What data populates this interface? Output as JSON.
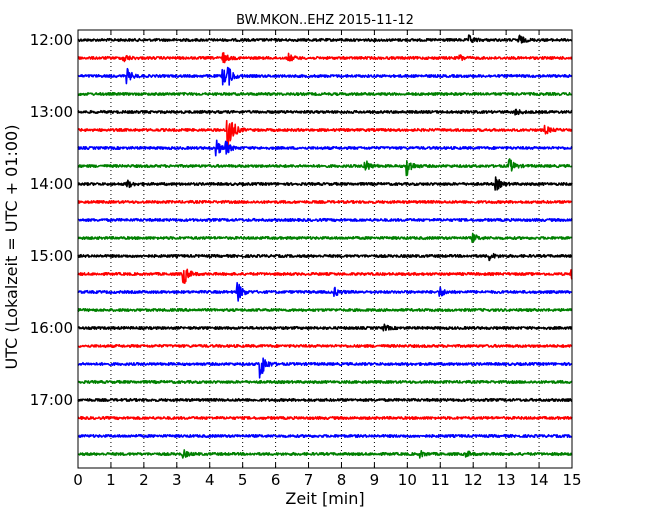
{
  "chart_data": {
    "type": "line",
    "title": "BW.MKON..EHZ 2015-11-12",
    "xlabel": "Zeit  [min]",
    "ylabel": "UTC (Lokalzeit = UTC + 01:00)",
    "xlim": [
      0,
      15
    ],
    "x_ticks": [
      "0",
      "1",
      "2",
      "3",
      "4",
      "5",
      "6",
      "7",
      "8",
      "9",
      "10",
      "11",
      "12",
      "13",
      "14",
      "15"
    ],
    "y_ticks": [
      "12:00",
      "13:00",
      "14:00",
      "15:00",
      "16:00",
      "17:00"
    ],
    "grid": "vertical dotted",
    "color_cycle": [
      "#000000",
      "#ff0000",
      "#0000ff",
      "#008000"
    ],
    "series": [
      {
        "start": "12:00",
        "color": "#000000",
        "events": [
          {
            "t": 11.9,
            "a": 0.2
          },
          {
            "t": 13.4,
            "a": 0.25
          }
        ]
      },
      {
        "start": "12:15",
        "color": "#ff0000",
        "events": [
          {
            "t": 1.4,
            "a": 0.2
          },
          {
            "t": 4.4,
            "a": 0.3
          },
          {
            "t": 6.4,
            "a": 0.2
          },
          {
            "t": 11.6,
            "a": 0.15
          }
        ]
      },
      {
        "start": "12:30",
        "color": "#0000ff",
        "events": [
          {
            "t": 1.5,
            "a": 0.35
          },
          {
            "t": 4.4,
            "a": 0.45
          },
          {
            "t": 4.55,
            "a": 0.5
          }
        ]
      },
      {
        "start": "12:45",
        "color": "#008000",
        "events": []
      },
      {
        "start": "13:00",
        "color": "#000000",
        "events": [
          {
            "t": 13.3,
            "a": 0.15
          }
        ]
      },
      {
        "start": "13:15",
        "color": "#ff0000",
        "events": [
          {
            "t": 4.55,
            "a": 1.6
          },
          {
            "t": 14.2,
            "a": 0.2
          }
        ]
      },
      {
        "start": "13:30",
        "color": "#0000ff",
        "events": [
          {
            "t": 4.2,
            "a": 0.45
          },
          {
            "t": 4.5,
            "a": 0.3
          }
        ]
      },
      {
        "start": "13:45",
        "color": "#008000",
        "events": [
          {
            "t": 8.7,
            "a": 0.4
          },
          {
            "t": 10.0,
            "a": 0.5
          },
          {
            "t": 13.1,
            "a": 0.4
          }
        ]
      },
      {
        "start": "14:00",
        "color": "#000000",
        "events": [
          {
            "t": 1.5,
            "a": 0.2
          },
          {
            "t": 12.7,
            "a": 0.35
          }
        ]
      },
      {
        "start": "14:15",
        "color": "#ff0000",
        "events": []
      },
      {
        "start": "14:30",
        "color": "#0000ff",
        "events": []
      },
      {
        "start": "14:45",
        "color": "#008000",
        "events": [
          {
            "t": 12.0,
            "a": 0.2
          }
        ]
      },
      {
        "start": "15:00",
        "color": "#000000",
        "events": [
          {
            "t": 12.5,
            "a": 0.2
          }
        ]
      },
      {
        "start": "15:15",
        "color": "#ff0000",
        "events": [
          {
            "t": 3.2,
            "a": 0.65
          },
          {
            "t": 15.0,
            "a": 0.3
          }
        ]
      },
      {
        "start": "15:30",
        "color": "#0000ff",
        "events": [
          {
            "t": 4.85,
            "a": 0.55
          },
          {
            "t": 7.8,
            "a": 0.2
          },
          {
            "t": 11.0,
            "a": 0.25
          }
        ]
      },
      {
        "start": "15:45",
        "color": "#008000",
        "events": []
      },
      {
        "start": "16:00",
        "color": "#000000",
        "events": [
          {
            "t": 9.3,
            "a": 0.15
          }
        ]
      },
      {
        "start": "16:15",
        "color": "#ff0000",
        "events": []
      },
      {
        "start": "16:30",
        "color": "#0000ff",
        "events": [
          {
            "t": 5.55,
            "a": 0.85
          }
        ]
      },
      {
        "start": "16:45",
        "color": "#008000",
        "events": []
      },
      {
        "start": "17:00",
        "color": "#000000",
        "events": []
      },
      {
        "start": "17:15",
        "color": "#ff0000",
        "events": []
      },
      {
        "start": "17:30",
        "color": "#0000ff",
        "events": []
      },
      {
        "start": "17:45",
        "color": "#008000",
        "events": [
          {
            "t": 3.2,
            "a": 0.2
          },
          {
            "t": 10.4,
            "a": 0.15
          },
          {
            "t": 11.8,
            "a": 0.15
          }
        ]
      }
    ]
  }
}
